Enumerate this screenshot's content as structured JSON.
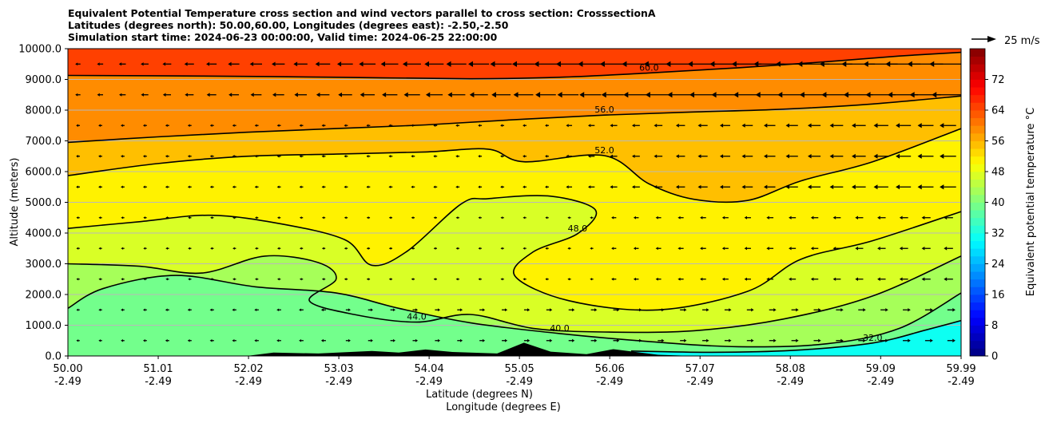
{
  "chart_data": {
    "type": "contourf",
    "title_lines": [
      "Equivalent Potential Temperature cross section and wind vectors parallel to cross section: CrosssectionA",
      "Latitudes (degrees north): 50.00,60.00, Longitudes (degrees east): -2.50,-2.50",
      "Simulation start time: 2024-06-23 00:00:00, Valid time: 2024-06-25 22:00:00"
    ],
    "ylabel": "Altitude (meters)",
    "xlabel_lines": [
      "Latitude (degrees N)",
      "Longitude (degrees E)"
    ],
    "xlim": [
      50.0,
      59.99
    ],
    "ylim": [
      0,
      10000
    ],
    "x_ticks": [
      {
        "lat": "50.00",
        "lon": "-2.49",
        "value": 50.0
      },
      {
        "lat": "51.01",
        "lon": "-2.49",
        "value": 51.01
      },
      {
        "lat": "52.02",
        "lon": "-2.49",
        "value": 52.02
      },
      {
        "lat": "53.03",
        "lon": "-2.49",
        "value": 53.03
      },
      {
        "lat": "54.04",
        "lon": "-2.49",
        "value": 54.04
      },
      {
        "lat": "55.05",
        "lon": "-2.49",
        "value": 55.05
      },
      {
        "lat": "56.06",
        "lon": "-2.49",
        "value": 56.06
      },
      {
        "lat": "57.07",
        "lon": "-2.49",
        "value": 57.07
      },
      {
        "lat": "58.08",
        "lon": "-2.49",
        "value": 58.08
      },
      {
        "lat": "59.09",
        "lon": "-2.49",
        "value": 59.09
      },
      {
        "lat": "59.99",
        "lon": "-2.49",
        "value": 59.99
      }
    ],
    "y_ticks": [
      {
        "label": "0.0",
        "value": 0
      },
      {
        "label": "1000.0",
        "value": 1000
      },
      {
        "label": "2000.0",
        "value": 2000
      },
      {
        "label": "3000.0",
        "value": 3000
      },
      {
        "label": "4000.0",
        "value": 4000
      },
      {
        "label": "5000.0",
        "value": 5000
      },
      {
        "label": "6000.0",
        "value": 6000
      },
      {
        "label": "7000.0",
        "value": 7000
      },
      {
        "label": "8000.0",
        "value": 8000
      },
      {
        "label": "9000.0",
        "value": 9000
      },
      {
        "label": "10000.0",
        "value": 10000
      }
    ],
    "grid": "horizontal",
    "colorbar": {
      "label": "Equivalent potential temperature $^\\circ$C",
      "label_display": "Equivalent potential temperature °C",
      "range": [
        0,
        80
      ],
      "step": 2,
      "ticks": [
        {
          "label": "0",
          "value": 0
        },
        {
          "label": "8",
          "value": 8
        },
        {
          "label": "16",
          "value": 16
        },
        {
          "label": "24",
          "value": 24
        },
        {
          "label": "32",
          "value": 32
        },
        {
          "label": "40",
          "value": 40
        },
        {
          "label": "48",
          "value": 48
        },
        {
          "label": "56",
          "value": 56
        },
        {
          "label": "64",
          "value": 64
        },
        {
          "label": "72",
          "value": 72
        }
      ],
      "colormap": "jet"
    },
    "quiver_key": {
      "label": "25 m/s",
      "speed": 25
    },
    "contour_levels_labeled": [
      "32.0",
      "40.0",
      "44.0",
      "48.0",
      "52.0",
      "56.0",
      "60.0"
    ],
    "contours": [
      {
        "level": 60,
        "points": [
          [
            50.0,
            9130
          ],
          [
            51.5,
            9110
          ],
          [
            53.0,
            9070
          ],
          [
            54.5,
            9020
          ],
          [
            55.5,
            9070
          ],
          [
            56.5,
            9210
          ],
          [
            57.5,
            9380
          ],
          [
            58.5,
            9580
          ],
          [
            59.3,
            9760
          ],
          [
            59.99,
            9880
          ]
        ]
      },
      {
        "level": 56,
        "points": [
          [
            50.0,
            6950
          ],
          [
            51.0,
            7130
          ],
          [
            52.0,
            7280
          ],
          [
            53.0,
            7400
          ],
          [
            54.0,
            7520
          ],
          [
            55.0,
            7690
          ],
          [
            56.0,
            7840
          ],
          [
            57.0,
            7940
          ],
          [
            58.0,
            8030
          ],
          [
            59.0,
            8200
          ],
          [
            59.99,
            8460
          ]
        ]
      },
      {
        "level": 52,
        "points": [
          [
            50.0,
            5870
          ],
          [
            51.0,
            6260
          ],
          [
            52.0,
            6500
          ],
          [
            53.0,
            6570
          ],
          [
            54.0,
            6640
          ],
          [
            54.7,
            6730
          ],
          [
            55.1,
            6320
          ],
          [
            56.0,
            6520
          ],
          [
            56.5,
            5600
          ],
          [
            57.0,
            5100
          ],
          [
            57.6,
            5060
          ],
          [
            58.2,
            5700
          ],
          [
            59.0,
            6320
          ],
          [
            59.99,
            7400
          ]
        ]
      },
      {
        "level": 48,
        "points": [
          [
            50.0,
            4150
          ],
          [
            50.8,
            4370
          ],
          [
            51.6,
            4580
          ],
          [
            52.4,
            4290
          ],
          [
            53.1,
            3780
          ],
          [
            53.4,
            2950
          ],
          [
            53.8,
            3420
          ],
          [
            54.4,
            4950
          ],
          [
            54.7,
            5120
          ],
          [
            55.4,
            5200
          ],
          [
            55.9,
            4750
          ],
          [
            55.7,
            3980
          ],
          [
            55.2,
            3380
          ],
          [
            55.0,
            2600
          ],
          [
            55.6,
            1800
          ],
          [
            56.6,
            1500
          ],
          [
            57.6,
            2100
          ],
          [
            58.2,
            3150
          ],
          [
            59.0,
            3750
          ],
          [
            59.99,
            4700
          ]
        ]
      },
      {
        "level": 44,
        "points": [
          [
            50.0,
            3000
          ],
          [
            50.8,
            2920
          ],
          [
            51.5,
            2700
          ],
          [
            52.2,
            3250
          ],
          [
            52.8,
            3040
          ],
          [
            53.0,
            2500
          ],
          [
            52.7,
            1800
          ],
          [
            53.2,
            1350
          ],
          [
            53.9,
            1100
          ],
          [
            54.5,
            1350
          ],
          [
            55.2,
            900
          ],
          [
            56.0,
            780
          ],
          [
            57.0,
            820
          ],
          [
            58.0,
            1200
          ],
          [
            59.0,
            1950
          ],
          [
            59.99,
            3250
          ]
        ]
      },
      {
        "level": 40,
        "points": [
          [
            50.0,
            1550
          ],
          [
            50.4,
            2200
          ],
          [
            51.2,
            2620
          ],
          [
            52.1,
            2250
          ],
          [
            53.0,
            2050
          ],
          [
            53.7,
            1550
          ],
          [
            54.5,
            1080
          ],
          [
            55.5,
            730
          ],
          [
            56.5,
            470
          ],
          [
            57.5,
            300
          ],
          [
            58.5,
            400
          ],
          [
            59.3,
            900
          ],
          [
            59.99,
            2050
          ]
        ]
      },
      {
        "level": 32,
        "points": [
          [
            56.3,
            160
          ],
          [
            57.2,
            120
          ],
          [
            58.1,
            180
          ],
          [
            59.0,
            420
          ],
          [
            59.6,
            850
          ],
          [
            59.99,
            1150
          ]
        ]
      }
    ]
  }
}
